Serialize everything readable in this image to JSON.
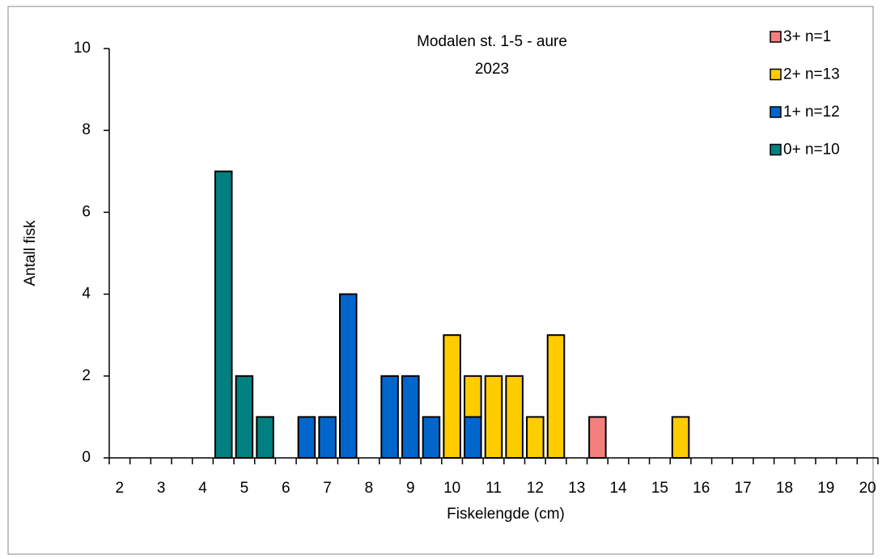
{
  "chart_data": {
    "type": "bar",
    "stacked": true,
    "title": "Modalen st. 1-5 - aure",
    "subtitle": "2023",
    "x_label": "Fiskelengde (cm)",
    "y_label": "Antall fisk",
    "categories": [
      "2",
      null,
      "3",
      null,
      "4",
      null,
      "5",
      null,
      "6",
      null,
      "7",
      null,
      "8",
      null,
      "9",
      null,
      "10",
      null,
      "11",
      null,
      "12",
      null,
      "13",
      null,
      "14",
      null,
      "15",
      null,
      "16",
      null,
      "17",
      null,
      "18",
      null,
      "19",
      null,
      "20"
    ],
    "series": [
      {
        "name": "3+ n=1",
        "color": "#f4807e",
        "values": [
          0,
          0,
          0,
          0,
          0,
          0,
          0,
          0,
          0,
          0,
          0,
          0,
          0,
          0,
          0,
          0,
          0,
          0,
          0,
          0,
          0,
          0,
          0,
          1,
          0,
          0,
          0,
          0,
          0,
          0,
          0,
          0,
          0,
          0,
          0,
          0,
          0
        ]
      },
      {
        "name": "2+ n=13",
        "color": "#ffcc00",
        "values": [
          0,
          0,
          0,
          0,
          0,
          0,
          0,
          0,
          0,
          0,
          0,
          0,
          0,
          0,
          0,
          0,
          3,
          1,
          2,
          2,
          1,
          3,
          0,
          0,
          0,
          0,
          0,
          1,
          0,
          0,
          0,
          0,
          0,
          0,
          0,
          0,
          0
        ]
      },
      {
        "name": "1+ n=12",
        "color": "#0066cc",
        "values": [
          0,
          0,
          0,
          0,
          0,
          0,
          0,
          0,
          0,
          1,
          1,
          4,
          0,
          2,
          2,
          1,
          0,
          1,
          0,
          0,
          0,
          0,
          0,
          0,
          0,
          0,
          0,
          0,
          0,
          0,
          0,
          0,
          0,
          0,
          0,
          0,
          0
        ]
      },
      {
        "name": "0+ n=10",
        "color": "#008080",
        "values": [
          0,
          0,
          0,
          0,
          0,
          7,
          2,
          1,
          0,
          0,
          0,
          0,
          0,
          0,
          0,
          0,
          0,
          0,
          0,
          0,
          0,
          0,
          0,
          0,
          0,
          0,
          0,
          0,
          0,
          0,
          0,
          0,
          0,
          0,
          0,
          0,
          0
        ]
      }
    ],
    "ylim": [
      0,
      10
    ],
    "yticks": [
      0,
      2,
      4,
      6,
      8,
      10
    ],
    "grid": false,
    "legend": "top-right"
  }
}
